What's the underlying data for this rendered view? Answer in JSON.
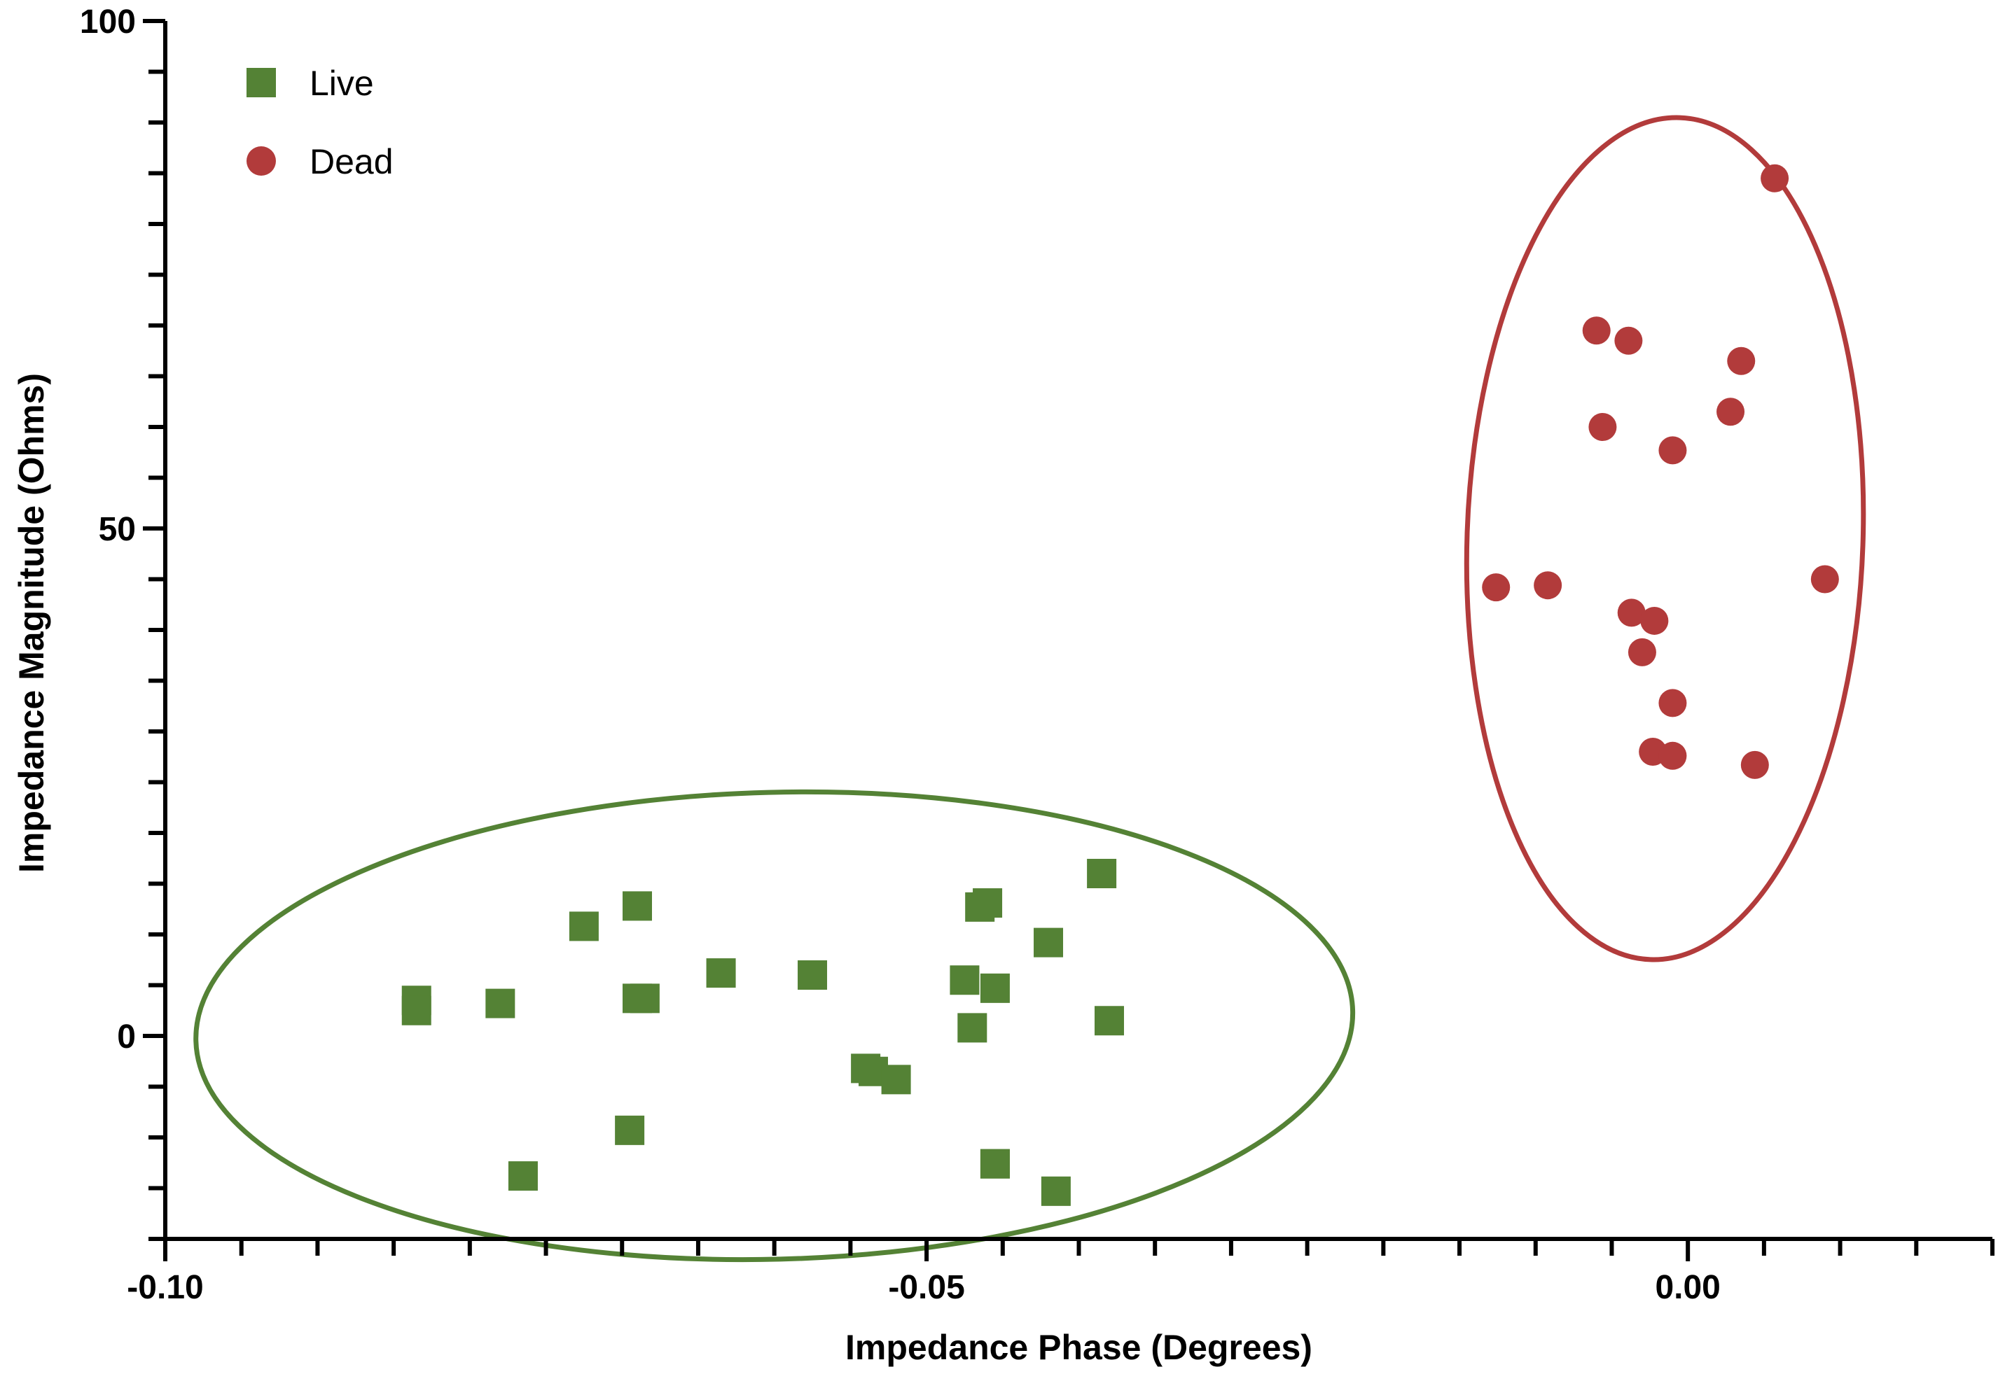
{
  "chart_data": {
    "type": "scatter",
    "title": "",
    "xlabel": "Impedance Phase (Degrees)",
    "ylabel": "Impedance Magnitude (Ohms)",
    "xlim": [
      -0.1,
      0.02
    ],
    "ylim": [
      -20,
      100
    ],
    "x_ticks": [
      -0.1,
      -0.05,
      0.0
    ],
    "x_tick_labels": [
      "-0.10",
      "-0.05",
      "0.00"
    ],
    "y_ticks": [
      0,
      50,
      100
    ],
    "y_tick_labels": [
      "0",
      "50",
      "100"
    ],
    "x_minor_step": 0.005,
    "y_minor_step": 5,
    "grid": false,
    "legend_position": "top-left",
    "series": [
      {
        "name": "Live",
        "marker": "square",
        "color": "#548235",
        "x": [
          -0.0835,
          -0.0835,
          -0.078,
          -0.0725,
          -0.069,
          -0.0685,
          -0.0695,
          -0.0635,
          -0.0575,
          -0.054,
          -0.0535,
          -0.052,
          -0.0475,
          -0.047,
          -0.0465,
          -0.046,
          -0.0455,
          -0.0455,
          -0.042,
          -0.0385,
          -0.038,
          -0.0765,
          -0.069,
          -0.0455,
          -0.0415
        ],
        "y": [
          3.5,
          2.5,
          3.2,
          10.8,
          12.8,
          3.7,
          -9.3,
          6.2,
          6.0,
          -3.2,
          -3.5,
          -4.3,
          5.5,
          0.8,
          12.7,
          13.1,
          4.7,
          -12.6,
          9.2,
          16.0,
          1.5,
          -13.8,
          3.7,
          -12.6,
          -15.3
        ]
      },
      {
        "name": "Dead",
        "marker": "circle",
        "color": "#b23b3b",
        "x": [
          0.0057,
          -0.006,
          -0.0039,
          0.0035,
          0.0028,
          -0.0056,
          -0.001,
          -0.0126,
          -0.0092,
          0.009,
          -0.0037,
          -0.0022,
          -0.003,
          -0.001,
          -0.0023,
          -0.001,
          0.0044
        ],
        "y": [
          84.5,
          69.5,
          68.5,
          66.5,
          61.5,
          60.0,
          57.7,
          44.2,
          44.4,
          45.0,
          41.7,
          40.9,
          37.8,
          32.8,
          28.0,
          27.6,
          26.7
        ]
      }
    ],
    "ellipses": [
      {
        "name": "Live cluster",
        "color": "#548235",
        "cx": -0.06,
        "cy": 1.0,
        "rx": 0.038,
        "ry": 23.0,
        "angle_deg": 1.5
      },
      {
        "name": "Dead cluster",
        "color": "#b23b3b",
        "cx": -0.0015,
        "cy": 49.0,
        "rx": 0.013,
        "ry": 41.5,
        "angle_deg": -2.0
      }
    ]
  }
}
